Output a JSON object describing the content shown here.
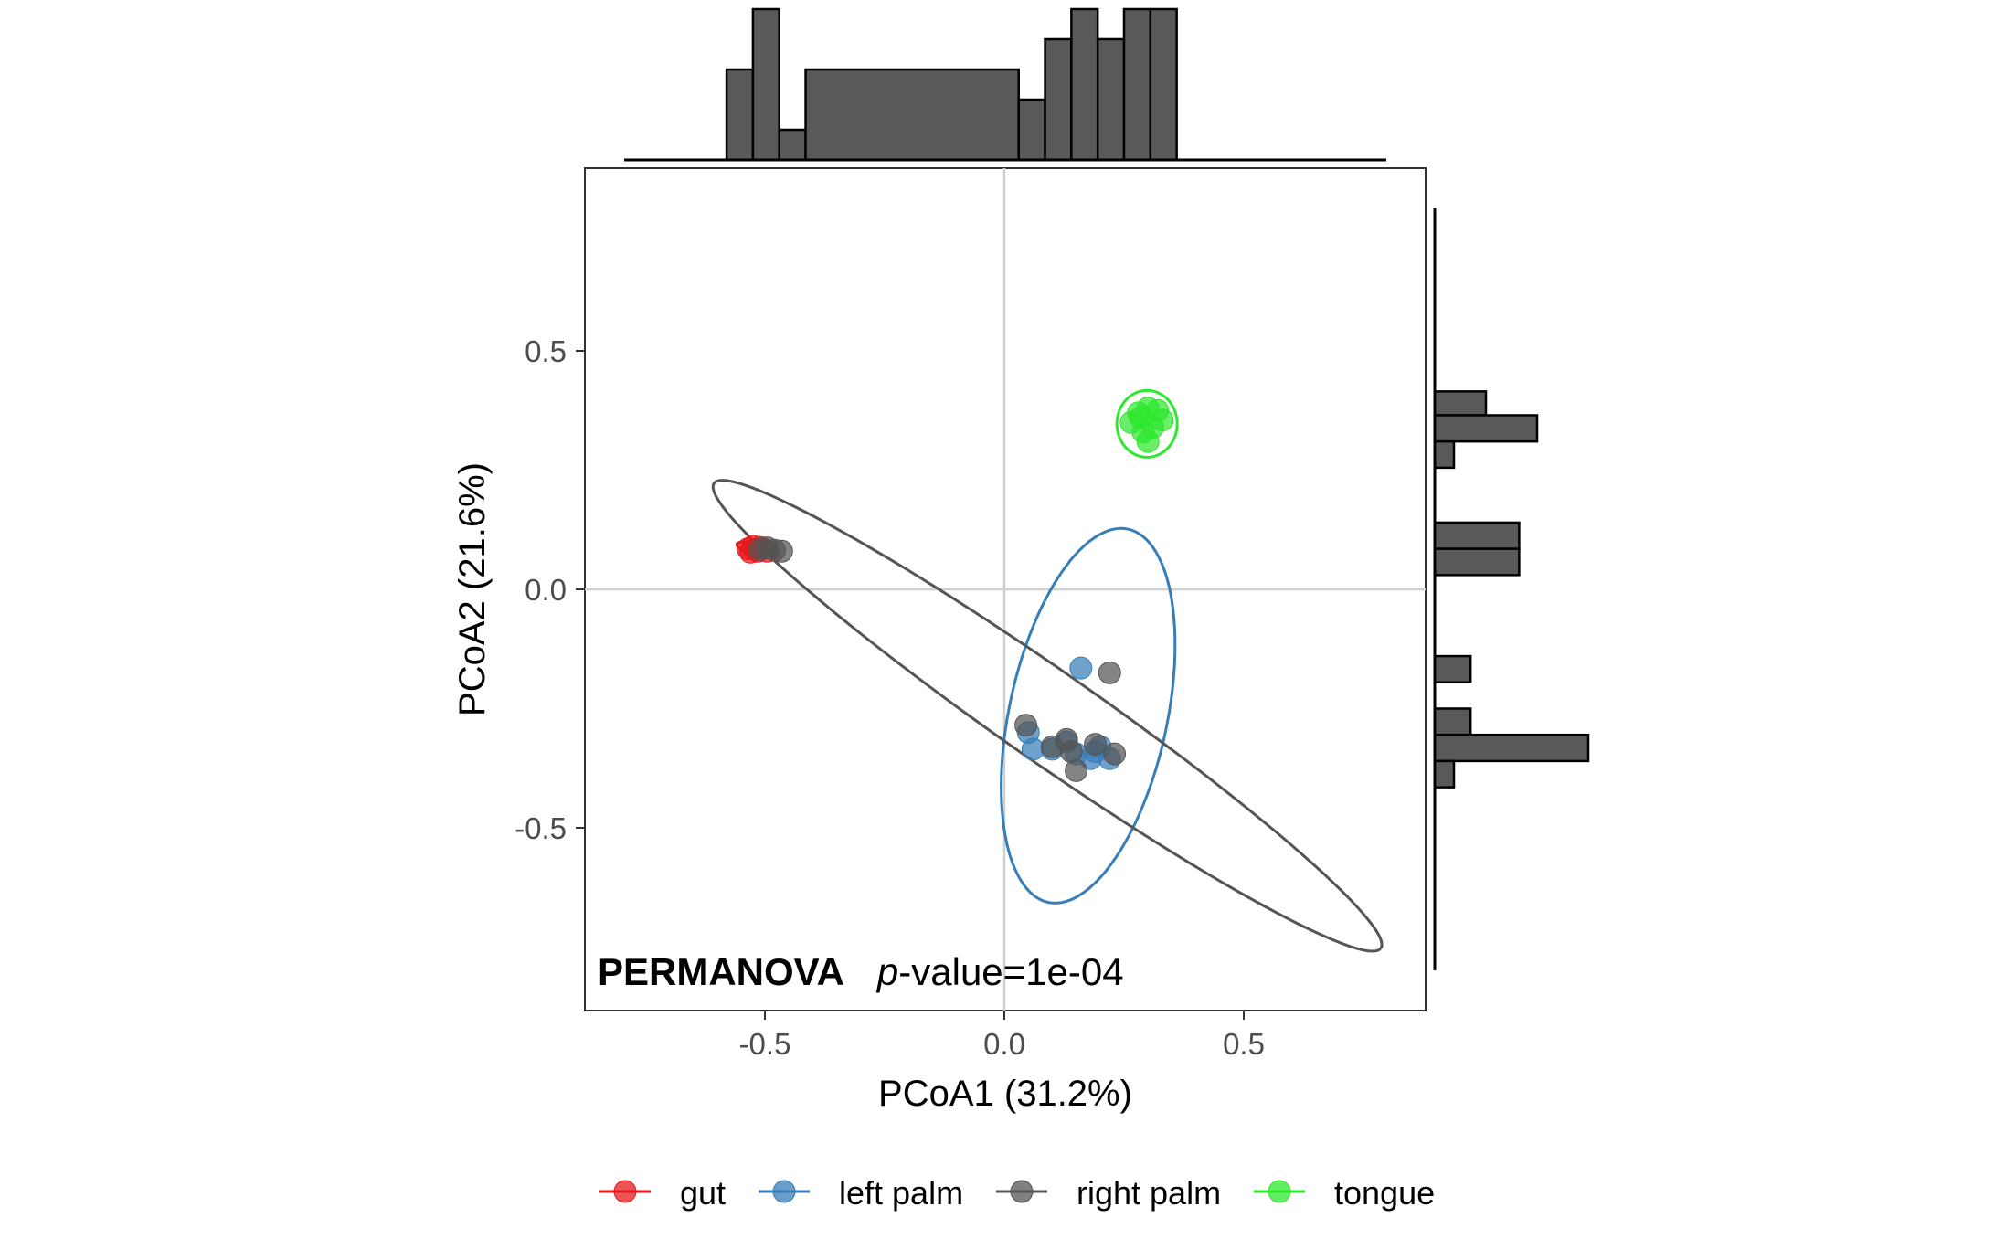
{
  "chart_data": {
    "type": "scatter",
    "title": "",
    "xlabel": "PCoA1 (31.2%)",
    "ylabel": "PCoA2 (21.6%)",
    "xlim": [
      -0.88,
      0.88
    ],
    "ylim": [
      -0.88,
      0.88
    ],
    "x_ticks": [
      -0.5,
      0.0,
      0.5
    ],
    "y_ticks": [
      -0.5,
      0.0,
      0.5
    ],
    "x_tick_labels": [
      "-0.5",
      "0.0",
      "0.5"
    ],
    "y_tick_labels": [
      "-0.5",
      "0.0",
      "0.5"
    ],
    "grid": "reference lines at x=0 and y=0",
    "legend_position": "bottom",
    "annotation": {
      "bold": "PERMANOVA",
      "italic": "p",
      "rest": "-value=1e-04"
    },
    "series": [
      {
        "name": "gut",
        "color": "#e41a1c",
        "points": [
          [
            -0.535,
            0.085
          ],
          [
            -0.525,
            0.09
          ],
          [
            -0.515,
            0.08
          ],
          [
            -0.505,
            0.085
          ],
          [
            -0.495,
            0.08
          ],
          [
            -0.53,
            0.078
          ],
          [
            -0.51,
            0.088
          ],
          [
            -0.52,
            0.083
          ]
        ],
        "ellipse": {
          "cx": -0.515,
          "cy": 0.083,
          "rx": 0.045,
          "ry": 0.012,
          "angle_deg": -15
        }
      },
      {
        "name": "left palm",
        "color": "#377eb8",
        "points": [
          [
            0.16,
            -0.165
          ],
          [
            0.05,
            -0.3
          ],
          [
            0.06,
            -0.335
          ],
          [
            0.1,
            -0.335
          ],
          [
            0.15,
            -0.345
          ],
          [
            0.18,
            -0.355
          ],
          [
            0.2,
            -0.33
          ],
          [
            0.22,
            -0.355
          ],
          [
            0.13,
            -0.32
          ],
          [
            0.19,
            -0.34
          ]
        ],
        "ellipse": {
          "cx": 0.175,
          "cy": -0.265,
          "rx": 0.4,
          "ry": 0.165,
          "angle_deg": 78
        }
      },
      {
        "name": "right palm",
        "color": "#555555",
        "points": [
          [
            -0.465,
            0.08
          ],
          [
            -0.48,
            0.082
          ],
          [
            -0.495,
            0.087
          ],
          [
            -0.51,
            0.084
          ],
          [
            0.22,
            -0.175
          ],
          [
            0.045,
            -0.285
          ],
          [
            0.1,
            -0.33
          ],
          [
            0.13,
            -0.315
          ],
          [
            0.15,
            -0.38
          ],
          [
            0.19,
            -0.325
          ],
          [
            0.23,
            -0.345
          ],
          [
            0.14,
            -0.34
          ]
        ],
        "ellipse": {
          "cx": 0.09,
          "cy": -0.265,
          "rx": 0.85,
          "ry": 0.095,
          "angle_deg": -35
        }
      },
      {
        "name": "tongue",
        "color": "#2ee82e",
        "points": [
          [
            0.265,
            0.35
          ],
          [
            0.28,
            0.37
          ],
          [
            0.3,
            0.38
          ],
          [
            0.32,
            0.375
          ],
          [
            0.33,
            0.355
          ],
          [
            0.31,
            0.34
          ],
          [
            0.29,
            0.33
          ],
          [
            0.3,
            0.31
          ],
          [
            0.285,
            0.36
          ]
        ],
        "ellipse": {
          "cx": 0.298,
          "cy": 0.347,
          "rx": 0.063,
          "ry": 0.07,
          "angle_deg": 0
        }
      }
    ],
    "marginal_top_histogram": {
      "bin_edges": [
        -0.58,
        -0.525,
        -0.47,
        -0.415,
        0.03,
        0.085,
        0.14,
        0.195,
        0.25,
        0.305,
        0.36
      ],
      "counts": [
        3,
        5,
        1,
        3,
        2,
        4,
        5,
        4,
        5,
        5
      ]
    },
    "marginal_right_histogram": {
      "bins": [
        {
          "y_low": 0.365,
          "y_high": 0.415,
          "count": 2
        },
        {
          "y_low": 0.31,
          "y_high": 0.365,
          "count": 4
        },
        {
          "y_low": 0.255,
          "y_high": 0.31,
          "count": 0.75
        },
        {
          "y_low": 0.14,
          "y_high": 0.085,
          "count": 3.3
        },
        {
          "y_low": 0.085,
          "y_high": 0.03,
          "count": 3.3
        },
        {
          "y_low": -0.14,
          "y_high": -0.195,
          "count": 1.4
        },
        {
          "y_low": -0.25,
          "y_high": -0.305,
          "count": 1.4
        },
        {
          "y_low": -0.305,
          "y_high": -0.36,
          "count": 6
        },
        {
          "y_low": -0.36,
          "y_high": -0.415,
          "count": 0.75
        }
      ]
    }
  },
  "legend": {
    "items": [
      "gut",
      "left palm",
      "right palm",
      "tongue"
    ]
  }
}
